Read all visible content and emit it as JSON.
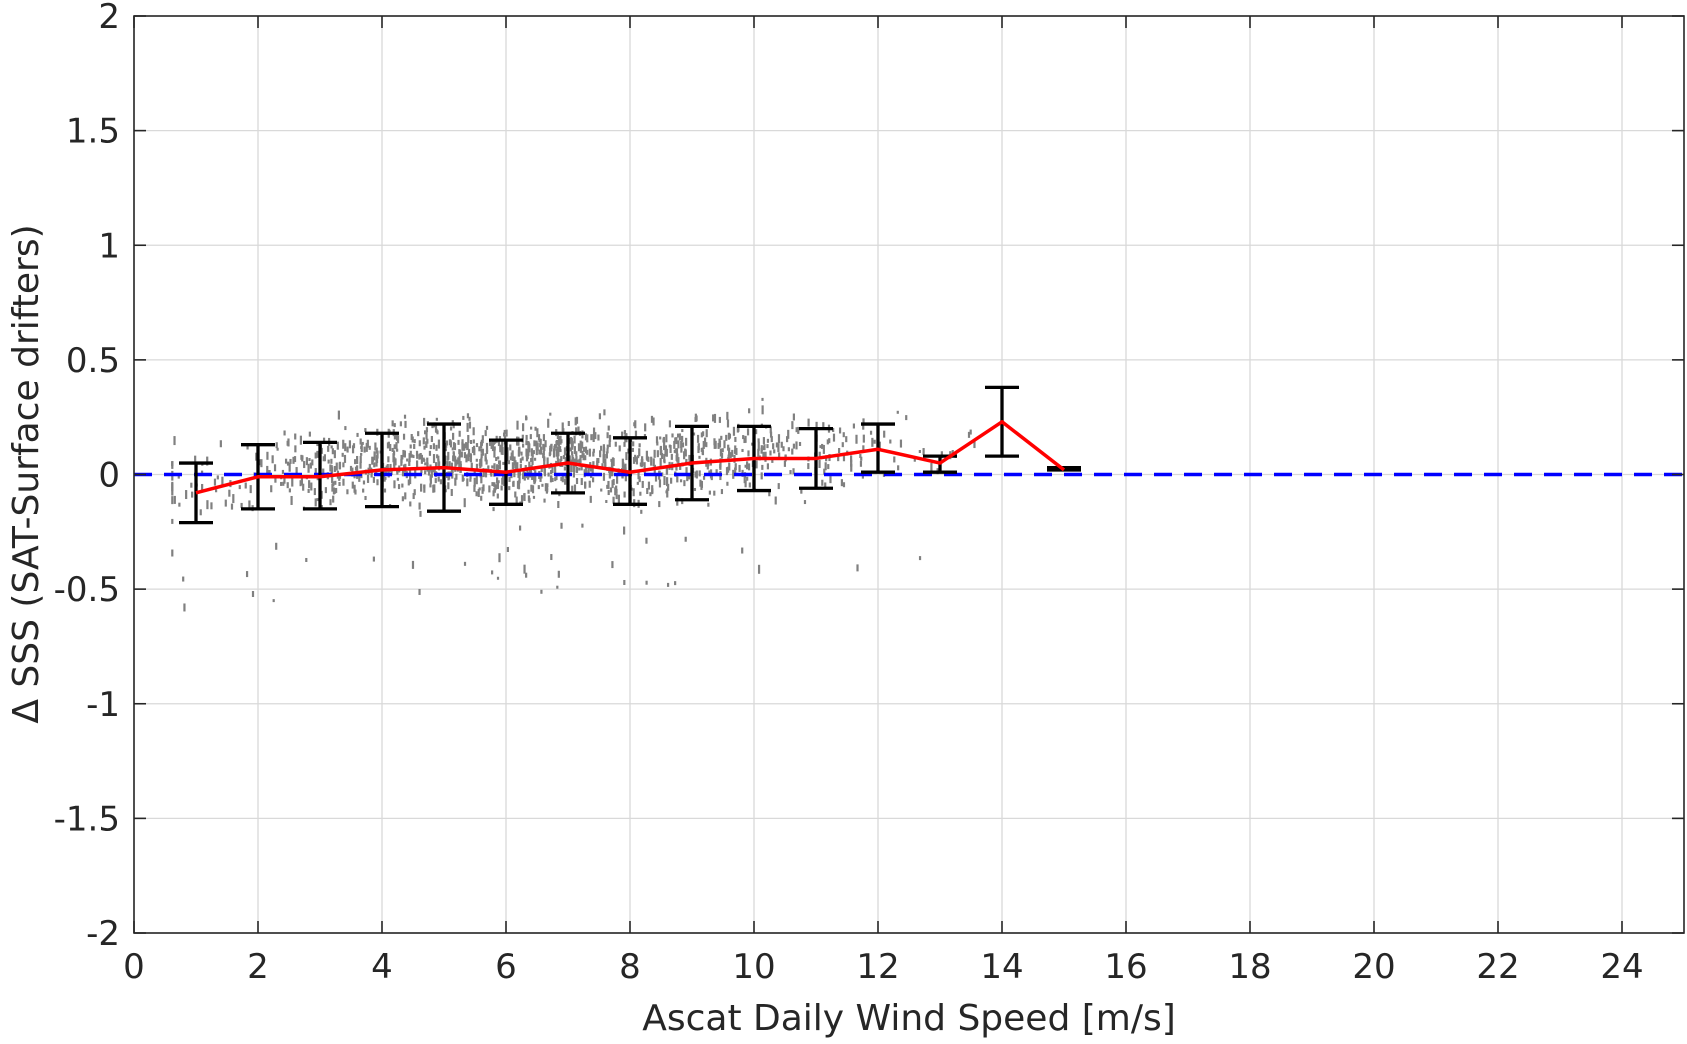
{
  "chart_data": {
    "type": "line",
    "xlabel": "Ascat Daily Wind Speed [m/s]",
    "ylabel": "Δ SSS (SAT-Surface drifters)",
    "xlim": [
      0,
      25
    ],
    "ylim": [
      -2,
      2
    ],
    "xticks": [
      0,
      2,
      4,
      6,
      8,
      10,
      12,
      14,
      16,
      18,
      20,
      22,
      24
    ],
    "yticks": [
      2,
      1.5,
      1,
      0.5,
      0,
      -0.5,
      -1,
      -1.5,
      -2
    ],
    "xtick_labels": [
      "0",
      "2",
      "4",
      "6",
      "8",
      "10",
      "12",
      "14",
      "16",
      "18",
      "20",
      "22",
      "24"
    ],
    "ytick_labels": [
      "2",
      "1.5",
      "1",
      "0.5",
      "0",
      "-0.5",
      "-1",
      "-1.5",
      "-2"
    ],
    "grid": true,
    "legend": "none",
    "series": [
      {
        "kind": "mean-line",
        "color": "#ff0000",
        "x": [
          1,
          2,
          3,
          4,
          5,
          6,
          7,
          8,
          9,
          10,
          11,
          12,
          13,
          14,
          15
        ],
        "y": [
          -0.08,
          -0.01,
          -0.01,
          0.02,
          0.03,
          0.01,
          0.05,
          0.01,
          0.05,
          0.07,
          0.07,
          0.11,
          0.05,
          0.23,
          0.02
        ]
      },
      {
        "kind": "error-bars",
        "color": "#000000",
        "x": [
          1,
          2,
          3,
          4,
          5,
          6,
          7,
          8,
          9,
          10,
          11,
          12,
          13,
          14,
          15
        ],
        "low": [
          -0.21,
          -0.15,
          -0.15,
          -0.14,
          -0.16,
          -0.13,
          -0.08,
          -0.13,
          -0.11,
          -0.07,
          -0.06,
          0.01,
          0.01,
          0.08,
          0.02
        ],
        "high": [
          0.05,
          0.13,
          0.14,
          0.18,
          0.22,
          0.15,
          0.18,
          0.16,
          0.21,
          0.21,
          0.2,
          0.22,
          0.08,
          0.38,
          0.03
        ]
      },
      {
        "kind": "zero-reference",
        "color": "#0000ff",
        "style": "dashed",
        "y": 0
      },
      {
        "kind": "scatter",
        "color": "#808080",
        "x_range": [
          0.6,
          13.8
        ],
        "y_range": [
          -0.58,
          0.42
        ]
      }
    ]
  }
}
